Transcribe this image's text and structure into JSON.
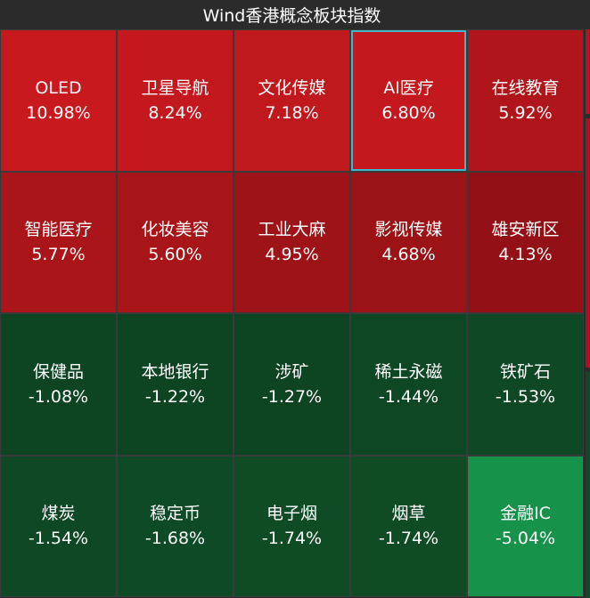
{
  "header": {
    "title": "Wind香港概念板块指数"
  },
  "selected": 3,
  "tiles": [
    {
      "name": "OLED",
      "change": "10.98%",
      "color": "#c8191f"
    },
    {
      "name": "卫星导航",
      "change": "8.24%",
      "color": "#c3191e"
    },
    {
      "name": "文化传媒",
      "change": "7.18%",
      "color": "#bf181d"
    },
    {
      "name": "AI医疗",
      "change": "6.80%",
      "color": "#c2181e"
    },
    {
      "name": "在线教育",
      "change": "5.92%",
      "color": "#b0151b"
    },
    {
      "name": "智能医疗",
      "change": "5.77%",
      "color": "#aa1519"
    },
    {
      "name": "化妆美容",
      "change": "5.60%",
      "color": "#a81519"
    },
    {
      "name": "工业大麻",
      "change": "4.95%",
      "color": "#9d1317"
    },
    {
      "name": "影视传媒",
      "change": "4.68%",
      "color": "#9b1317"
    },
    {
      "name": "雄安新区",
      "change": "4.13%",
      "color": "#931116"
    },
    {
      "name": "保健品",
      "change": "-1.08%",
      "color": "#0d4422"
    },
    {
      "name": "本地银行",
      "change": "-1.22%",
      "color": "#0d4522"
    },
    {
      "name": "涉矿",
      "change": "-1.27%",
      "color": "#0d4522"
    },
    {
      "name": "稀土永磁",
      "change": "-1.44%",
      "color": "#0e4723"
    },
    {
      "name": "铁矿石",
      "change": "-1.53%",
      "color": "#0e4824"
    },
    {
      "name": "煤炭",
      "change": "-1.54%",
      "color": "#0e4824"
    },
    {
      "name": "稳定币",
      "change": "-1.68%",
      "color": "#0e4a25"
    },
    {
      "name": "电子烟",
      "change": "-1.74%",
      "color": "#0f4b25"
    },
    {
      "name": "烟草",
      "change": "-1.74%",
      "color": "#0f4b25"
    },
    {
      "name": "金融IC",
      "change": "-5.04%",
      "color": "#17924a"
    }
  ]
}
